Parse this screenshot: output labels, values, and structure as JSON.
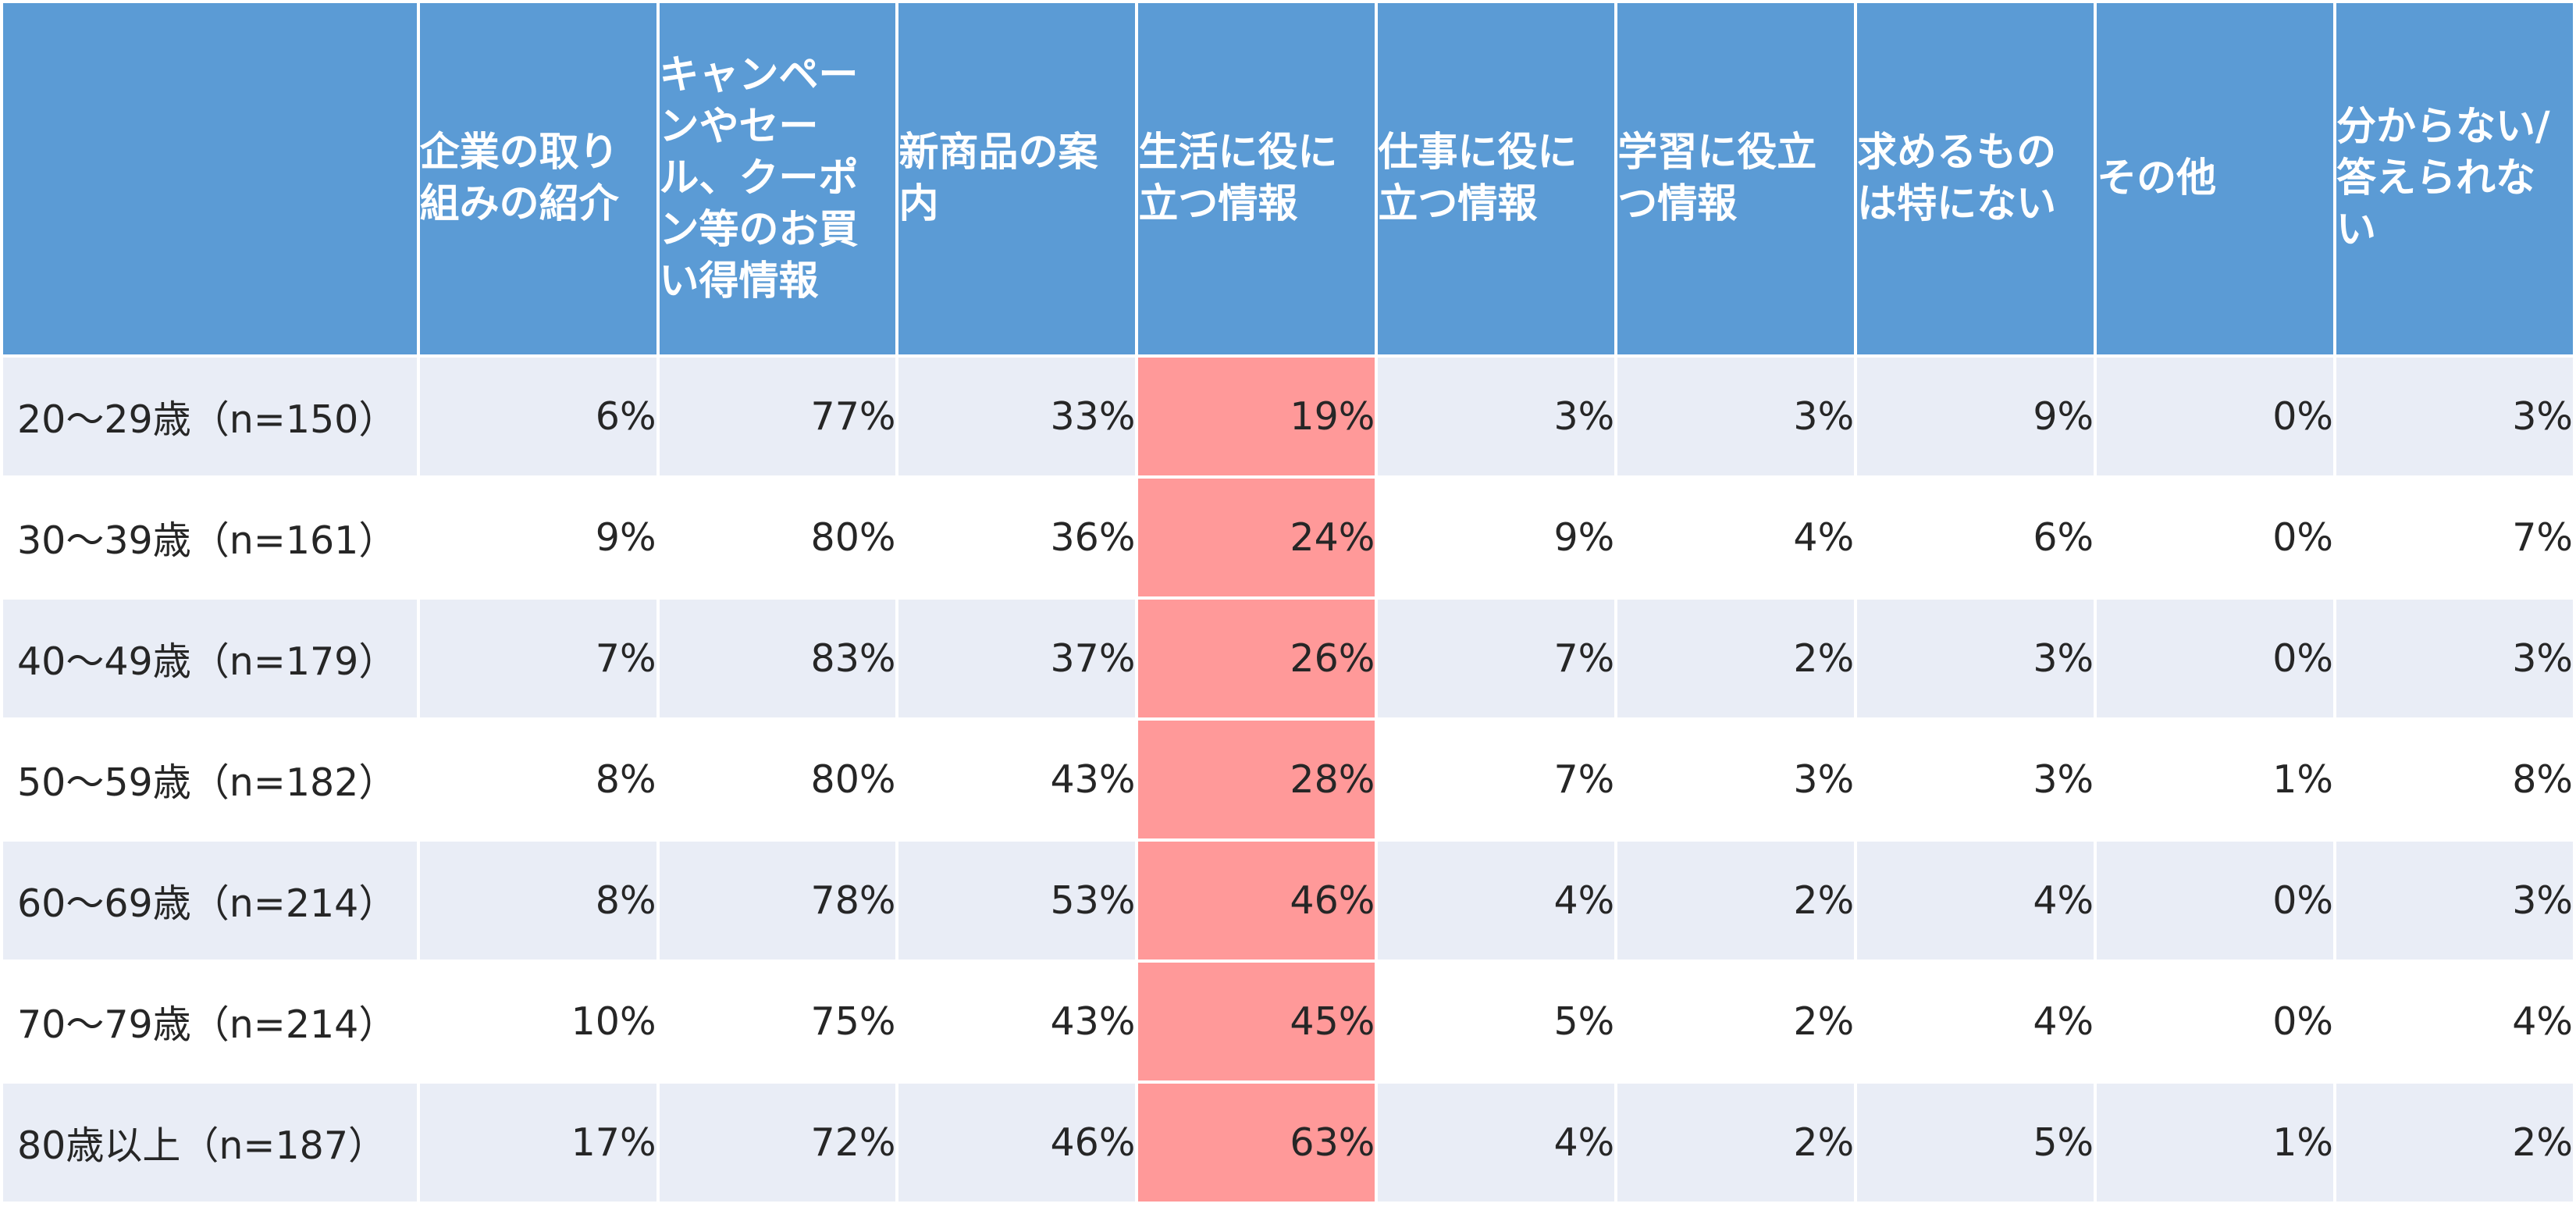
{
  "chart_data": {
    "type": "table",
    "columns": [
      "企業の取り組みの紹介",
      "キャンペーンやセール、クーポン等のお買い得情報",
      "新商品の案内",
      "生活に役に立つ情報",
      "仕事に役に立つ情報",
      "学習に役立つ情報",
      "求めるものは特にない",
      "その他",
      "分からない/答えられない"
    ],
    "highlighted_column": 3,
    "rows": [
      {
        "label": "20〜29歳（n=150）",
        "cells": [
          "6%",
          "77%",
          "33%",
          "19%",
          "3%",
          "3%",
          "9%",
          "0%",
          "3%"
        ]
      },
      {
        "label": "30〜39歳（n=161）",
        "cells": [
          "9%",
          "80%",
          "36%",
          "24%",
          "9%",
          "4%",
          "6%",
          "0%",
          "7%"
        ]
      },
      {
        "label": "40〜49歳（n=179）",
        "cells": [
          "7%",
          "83%",
          "37%",
          "26%",
          "7%",
          "2%",
          "3%",
          "0%",
          "3%"
        ]
      },
      {
        "label": "50〜59歳（n=182）",
        "cells": [
          "8%",
          "80%",
          "43%",
          "28%",
          "7%",
          "3%",
          "3%",
          "1%",
          "8%"
        ]
      },
      {
        "label": "60〜69歳（n=214）",
        "cells": [
          "8%",
          "78%",
          "53%",
          "46%",
          "4%",
          "2%",
          "4%",
          "0%",
          "3%"
        ]
      },
      {
        "label": "70〜79歳（n=214）",
        "cells": [
          "10%",
          "75%",
          "43%",
          "45%",
          "5%",
          "2%",
          "4%",
          "0%",
          "4%"
        ]
      },
      {
        "label": "80歳以上（n=187）",
        "cells": [
          "17%",
          "72%",
          "46%",
          "63%",
          "4%",
          "2%",
          "5%",
          "1%",
          "2%"
        ]
      }
    ],
    "colors": {
      "header_bg": "#5b9bd5",
      "header_text": "#ffffff",
      "row_shaded": "#e9edf6",
      "row_plain": "#ffffff",
      "highlight": "#ff9999",
      "body_text": "#262626"
    }
  }
}
